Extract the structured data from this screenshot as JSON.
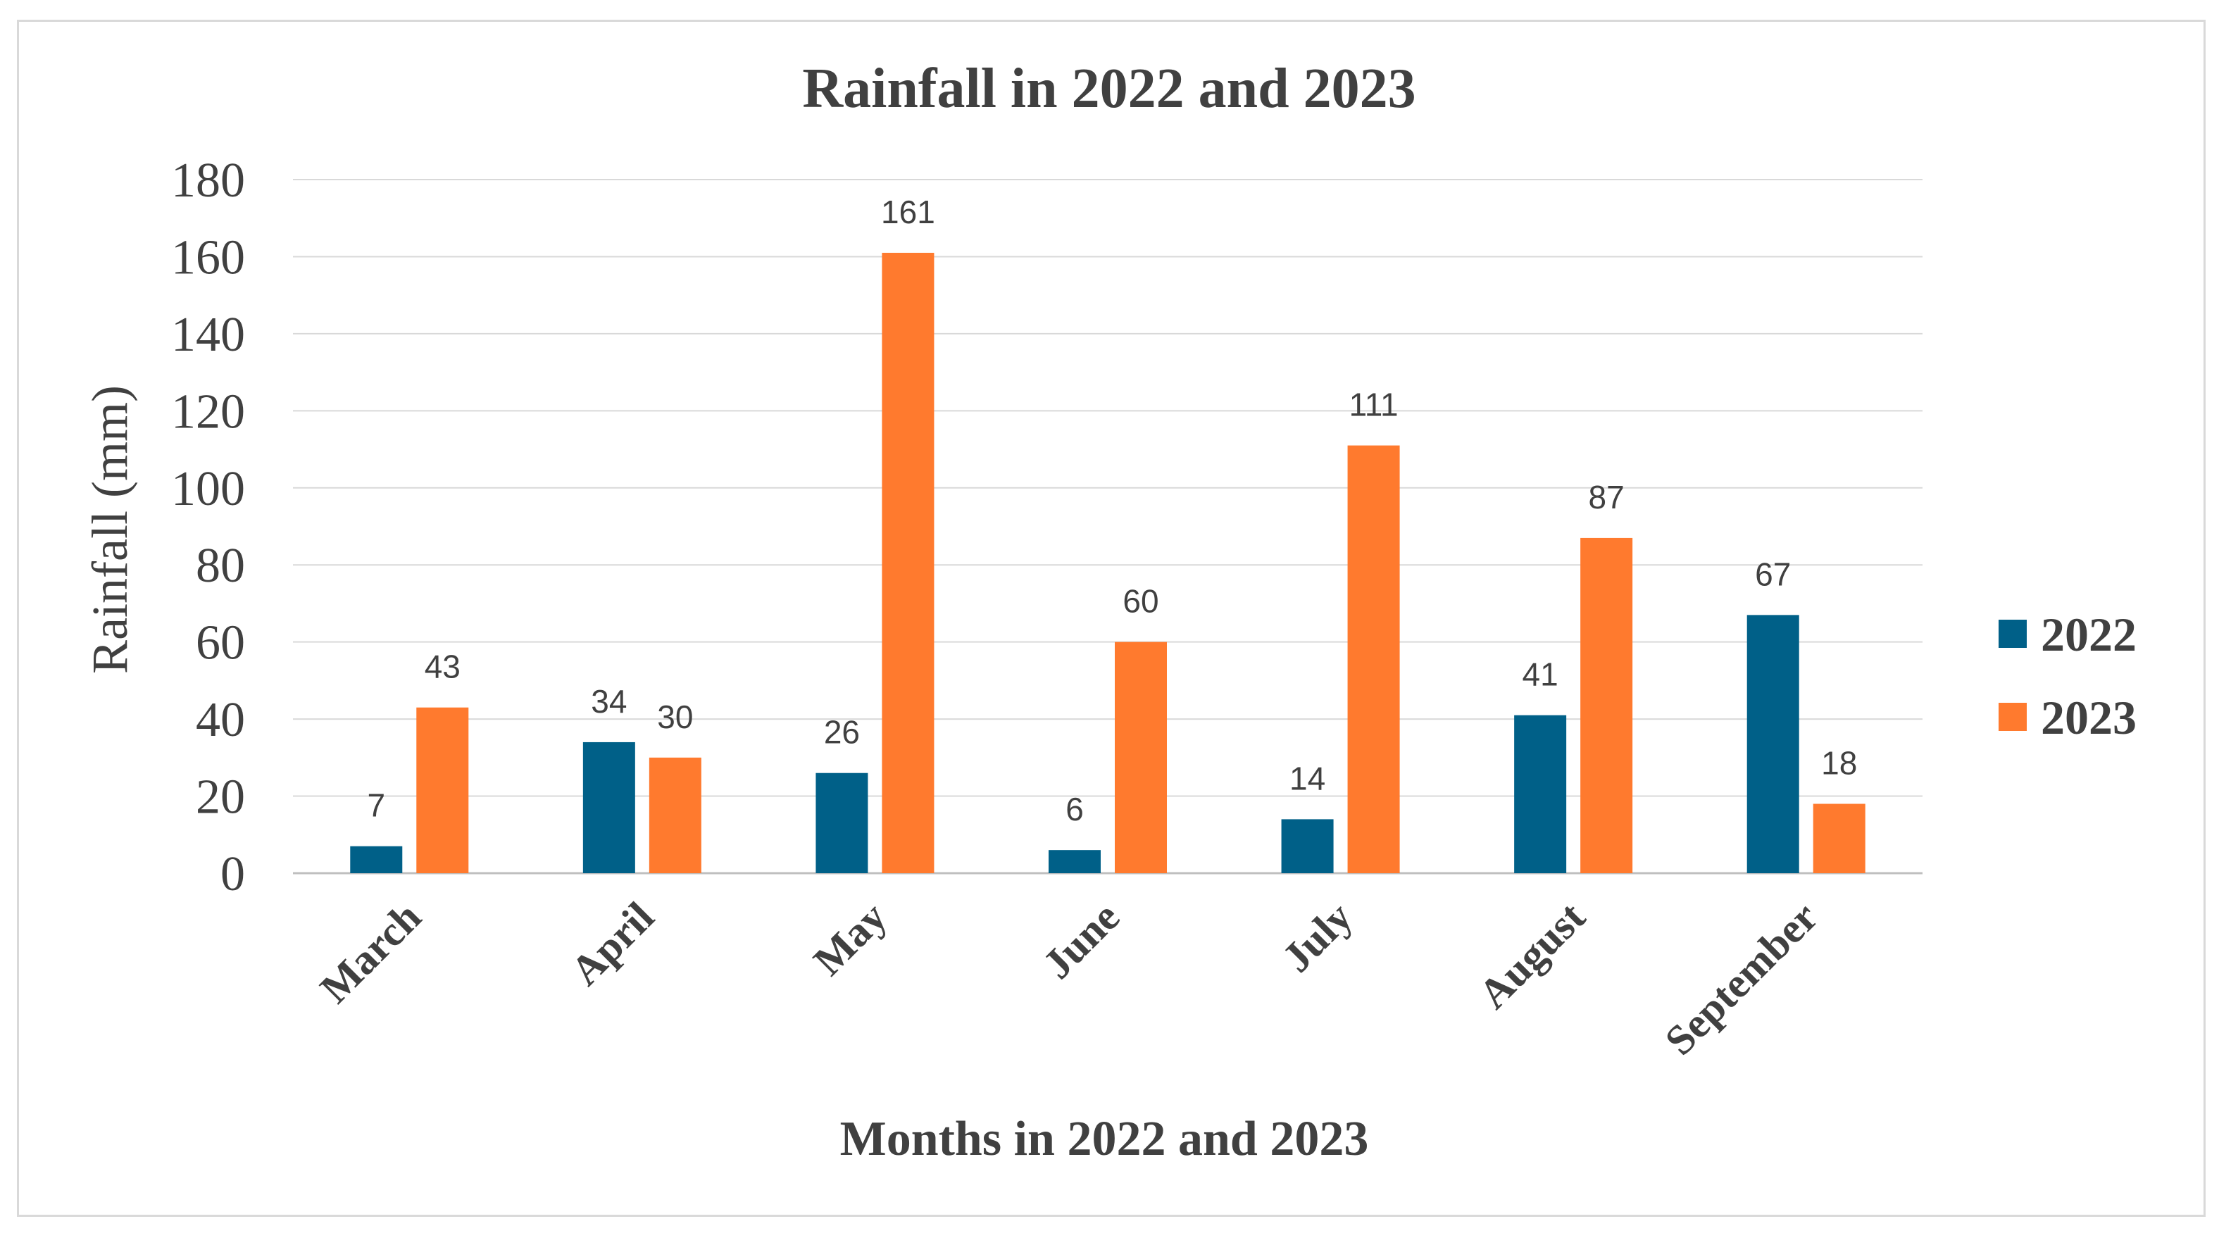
{
  "chart_data": {
    "type": "bar",
    "title": "Rainfall in 2022 and 2023",
    "xlabel": "Months in 2022 and 2023",
    "ylabel": "Rainfall (mm)",
    "ylim": [
      0,
      180
    ],
    "yticks": [
      0,
      20,
      40,
      60,
      80,
      100,
      120,
      140,
      160,
      180
    ],
    "categories": [
      "March",
      "April",
      "May",
      "June",
      "July",
      "August",
      "September"
    ],
    "series": [
      {
        "name": "2022",
        "color": "#006088",
        "values": [
          7,
          34,
          26,
          6,
          14,
          41,
          67
        ]
      },
      {
        "name": "2023",
        "color": "#FF7A2E",
        "values": [
          43,
          30,
          161,
          60,
          111,
          87,
          18
        ]
      }
    ],
    "grid": true,
    "legend": "right"
  }
}
